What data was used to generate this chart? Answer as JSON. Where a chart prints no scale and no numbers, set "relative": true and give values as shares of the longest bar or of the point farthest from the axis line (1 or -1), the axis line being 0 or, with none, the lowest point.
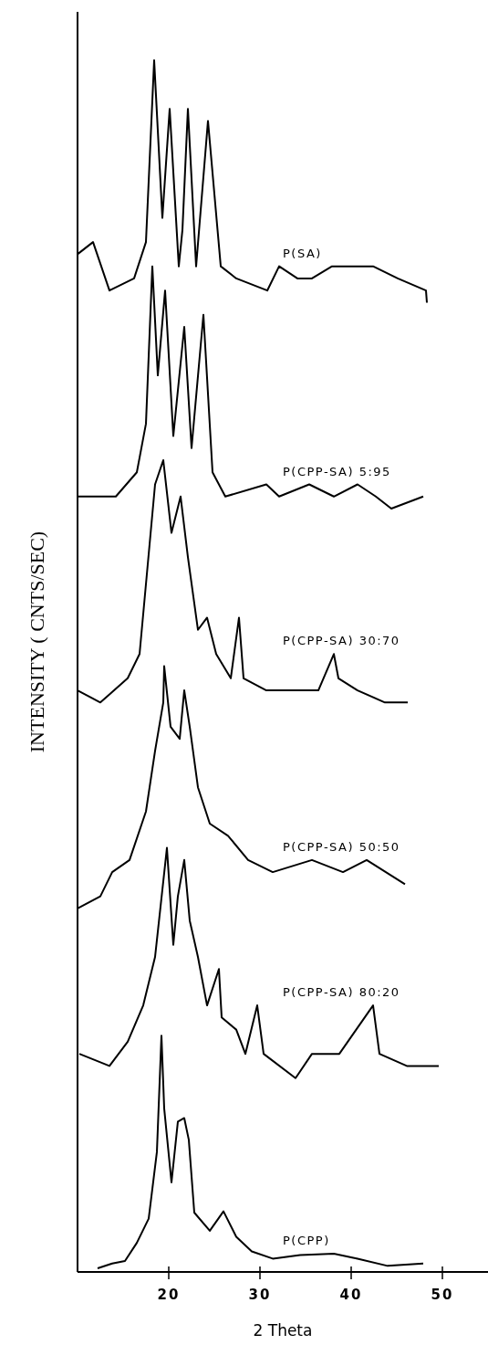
{
  "chart_data": {
    "type": "line",
    "relative": true,
    "xlabel": "2 Theta",
    "ylabel": "INTENSITY ( CNTS/SEC)",
    "xlim": [
      10,
      55
    ],
    "xticks": [
      20,
      30,
      40,
      50
    ],
    "series": [
      {
        "name": "P(SA)",
        "color": "#000000",
        "x": [
          10.0,
          11.7,
          13.5,
          16.2,
          17.5,
          18.4,
          19.3,
          20.1,
          21.1,
          21.5,
          22.1,
          23.0,
          24.3,
          25.7,
          27.4,
          30.8,
          32.1,
          34.1,
          35.7,
          37.9,
          39.7,
          42.4,
          45.1,
          48.2,
          48.3
        ],
        "values": [
          0.84,
          0.85,
          0.81,
          0.82,
          0.85,
          1.0,
          0.87,
          0.96,
          0.83,
          0.86,
          0.96,
          0.83,
          0.95,
          0.83,
          0.82,
          0.81,
          0.83,
          0.82,
          0.82,
          0.83,
          0.83,
          0.83,
          0.82,
          0.81,
          0.8
        ]
      },
      {
        "name": "P(CPP-SA) 5:95",
        "color": "#000000",
        "x": [
          10.0,
          14.2,
          16.5,
          17.5,
          18.2,
          18.8,
          19.6,
          20.5,
          21.7,
          22.5,
          23.8,
          24.8,
          26.2,
          30.7,
          32.1,
          35.4,
          38.1,
          40.7,
          42.7,
          44.4,
          47.9
        ],
        "values": [
          0.64,
          0.64,
          0.66,
          0.7,
          0.83,
          0.74,
          0.81,
          0.69,
          0.78,
          0.68,
          0.79,
          0.66,
          0.64,
          0.65,
          0.64,
          0.65,
          0.64,
          0.65,
          0.64,
          0.63,
          0.64
        ]
      },
      {
        "name": "P(CPP-SA) 30:70",
        "color": "#000000",
        "x": [
          10.0,
          12.5,
          15.5,
          16.8,
          18.5,
          19.4,
          20.3,
          21.3,
          22.1,
          23.2,
          24.2,
          25.2,
          26.8,
          27.7,
          28.2,
          30.7,
          34.1,
          36.4,
          38.1,
          38.6,
          40.7,
          43.7,
          46.2
        ],
        "values": [
          0.48,
          0.47,
          0.49,
          0.51,
          0.65,
          0.67,
          0.61,
          0.64,
          0.59,
          0.53,
          0.54,
          0.51,
          0.49,
          0.54,
          0.49,
          0.48,
          0.48,
          0.48,
          0.51,
          0.49,
          0.48,
          0.47,
          0.47
        ]
      },
      {
        "name": "P(CPP-SA) 50:50",
        "color": "#000000",
        "x": [
          10.0,
          12.5,
          13.8,
          15.7,
          17.5,
          18.5,
          19.4,
          19.5,
          20.2,
          21.2,
          21.7,
          22.3,
          23.2,
          24.5,
          26.5,
          28.7,
          31.4,
          35.7,
          39.1,
          41.7,
          45.9
        ],
        "values": [
          0.3,
          0.31,
          0.33,
          0.34,
          0.38,
          0.43,
          0.47,
          0.5,
          0.45,
          0.44,
          0.48,
          0.45,
          0.4,
          0.37,
          0.36,
          0.34,
          0.33,
          0.34,
          0.33,
          0.34,
          0.32
        ]
      },
      {
        "name": "P(CPP-SA) 80:20",
        "color": "#000000",
        "x": [
          10.2,
          13.5,
          15.5,
          17.2,
          18.5,
          19.8,
          20.5,
          21.0,
          21.7,
          22.3,
          23.2,
          24.2,
          25.5,
          25.8,
          27.4,
          28.4,
          29.7,
          30.4,
          33.9,
          35.7,
          38.7,
          42.4,
          43.1,
          46.1,
          49.6
        ],
        "values": [
          0.18,
          0.17,
          0.19,
          0.22,
          0.26,
          0.35,
          0.27,
          0.31,
          0.34,
          0.29,
          0.26,
          0.22,
          0.25,
          0.21,
          0.2,
          0.18,
          0.22,
          0.18,
          0.16,
          0.18,
          0.18,
          0.22,
          0.18,
          0.17,
          0.17
        ]
      },
      {
        "name": "P(CPP)",
        "color": "#000000",
        "x": [
          12.2,
          13.8,
          15.2,
          16.5,
          17.8,
          18.7,
          19.2,
          19.5,
          20.3,
          21.0,
          21.7,
          22.2,
          22.8,
          24.5,
          26.0,
          27.4,
          29.1,
          31.4,
          34.4,
          38.1,
          40.7,
          44.0,
          47.9
        ],
        "values": [
          0.003,
          0.007,
          0.009,
          0.024,
          0.044,
          0.099,
          0.195,
          0.135,
          0.074,
          0.124,
          0.127,
          0.109,
          0.049,
          0.034,
          0.05,
          0.029,
          0.017,
          0.011,
          0.014,
          0.015,
          0.011,
          0.005,
          0.007
        ]
      }
    ]
  }
}
